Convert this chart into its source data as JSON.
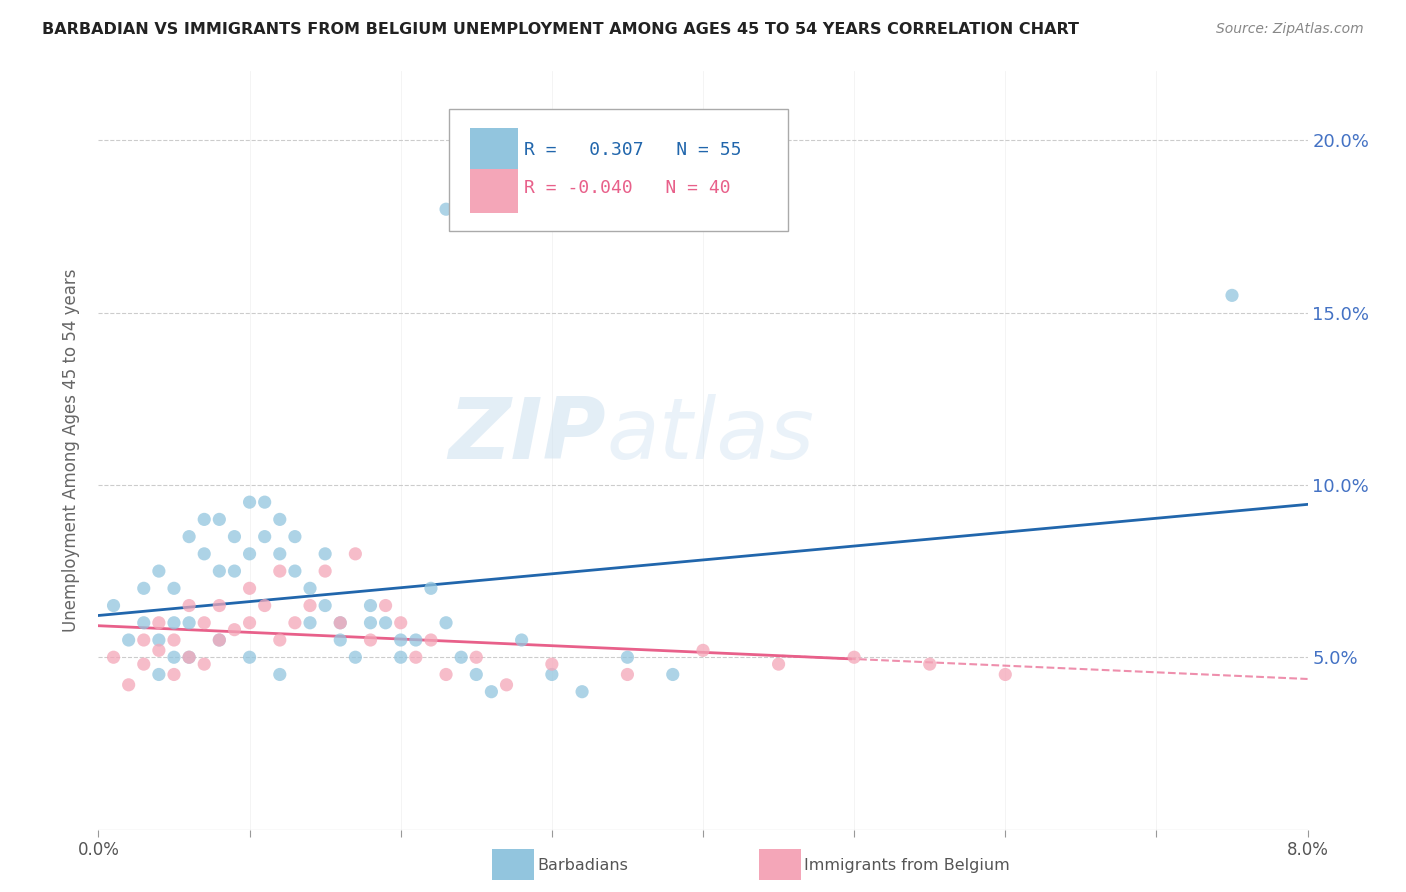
{
  "title": "BARBADIAN VS IMMIGRANTS FROM BELGIUM UNEMPLOYMENT AMONG AGES 45 TO 54 YEARS CORRELATION CHART",
  "source": "Source: ZipAtlas.com",
  "ylabel": "Unemployment Among Ages 45 to 54 years",
  "legend_label1": "Barbadians",
  "legend_label2": "Immigrants from Belgium",
  "r1": "0.307",
  "n1": "55",
  "r2": "-0.040",
  "n2": "40",
  "watermark": "ZIPatlas",
  "blue_color": "#92c5de",
  "pink_color": "#f4a6b8",
  "blue_line_color": "#2166ac",
  "pink_line_color": "#e8608a",
  "grid_color": "#cccccc",
  "barbadians_x": [
    0.001,
    0.002,
    0.003,
    0.003,
    0.004,
    0.004,
    0.005,
    0.005,
    0.005,
    0.006,
    0.006,
    0.007,
    0.007,
    0.008,
    0.008,
    0.009,
    0.009,
    0.01,
    0.01,
    0.011,
    0.011,
    0.012,
    0.012,
    0.013,
    0.013,
    0.014,
    0.015,
    0.015,
    0.016,
    0.017,
    0.018,
    0.019,
    0.02,
    0.021,
    0.022,
    0.023,
    0.024,
    0.025,
    0.026,
    0.028,
    0.03,
    0.032,
    0.035,
    0.038,
    0.004,
    0.006,
    0.008,
    0.01,
    0.012,
    0.014,
    0.016,
    0.018,
    0.02,
    0.075,
    0.023
  ],
  "barbadians_y": [
    0.065,
    0.055,
    0.06,
    0.07,
    0.055,
    0.075,
    0.06,
    0.05,
    0.07,
    0.06,
    0.085,
    0.08,
    0.09,
    0.075,
    0.09,
    0.075,
    0.085,
    0.095,
    0.08,
    0.095,
    0.085,
    0.08,
    0.09,
    0.075,
    0.085,
    0.07,
    0.065,
    0.08,
    0.06,
    0.05,
    0.065,
    0.06,
    0.055,
    0.055,
    0.07,
    0.06,
    0.05,
    0.045,
    0.04,
    0.055,
    0.045,
    0.04,
    0.05,
    0.045,
    0.045,
    0.05,
    0.055,
    0.05,
    0.045,
    0.06,
    0.055,
    0.06,
    0.05,
    0.155,
    0.18
  ],
  "belgium_x": [
    0.001,
    0.002,
    0.003,
    0.003,
    0.004,
    0.004,
    0.005,
    0.005,
    0.006,
    0.006,
    0.007,
    0.007,
    0.008,
    0.008,
    0.009,
    0.01,
    0.01,
    0.011,
    0.012,
    0.012,
    0.013,
    0.014,
    0.015,
    0.016,
    0.017,
    0.018,
    0.019,
    0.02,
    0.021,
    0.022,
    0.023,
    0.025,
    0.027,
    0.03,
    0.035,
    0.04,
    0.045,
    0.05,
    0.055,
    0.06
  ],
  "belgium_y": [
    0.05,
    0.042,
    0.048,
    0.055,
    0.052,
    0.06,
    0.045,
    0.055,
    0.05,
    0.065,
    0.048,
    0.06,
    0.055,
    0.065,
    0.058,
    0.06,
    0.07,
    0.065,
    0.055,
    0.075,
    0.06,
    0.065,
    0.075,
    0.06,
    0.08,
    0.055,
    0.065,
    0.06,
    0.05,
    0.055,
    0.045,
    0.05,
    0.042,
    0.048,
    0.045,
    0.052,
    0.048,
    0.05,
    0.048,
    0.045
  ],
  "x_tick_vals": [
    0.0,
    0.01,
    0.02,
    0.03,
    0.04,
    0.05,
    0.06,
    0.07,
    0.08
  ],
  "y_tick_vals": [
    0.05,
    0.1,
    0.15,
    0.2
  ],
  "xlim": [
    0.0,
    0.08
  ],
  "ylim": [
    0.0,
    0.22
  ]
}
